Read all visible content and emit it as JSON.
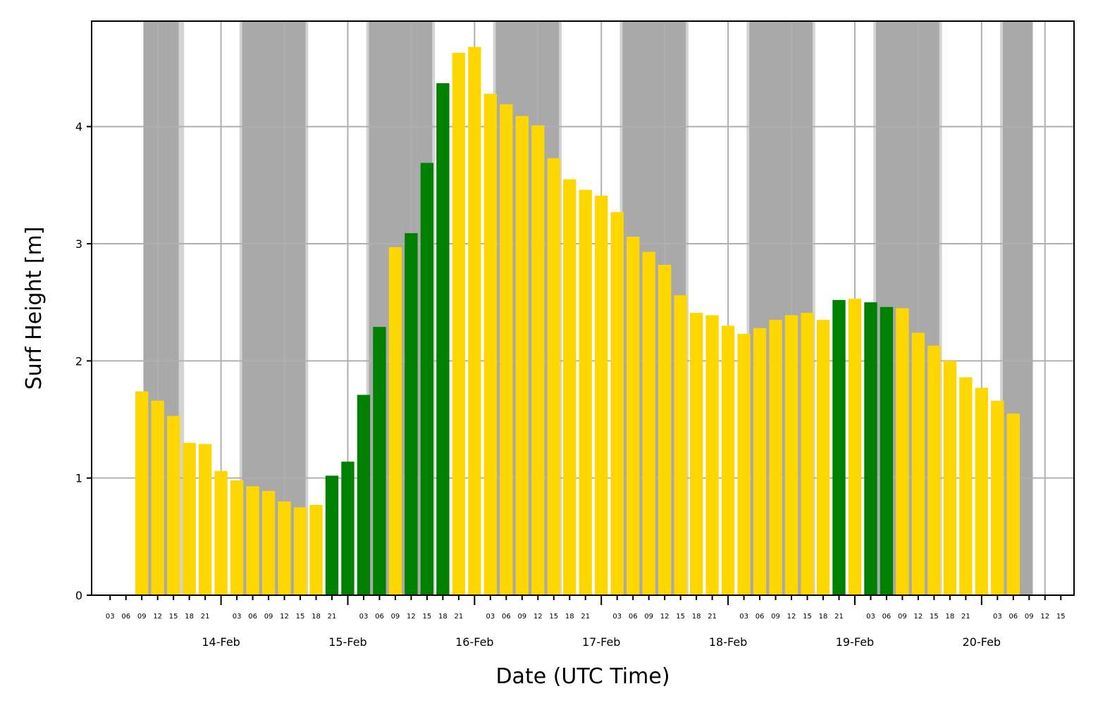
{
  "chart_data": {
    "type": "bar",
    "title": "",
    "xlabel": "Date (UTC Time)",
    "ylabel": "Surf Height [m]",
    "ylim": [
      0,
      4.9
    ],
    "yticks": [
      0,
      1,
      2,
      3,
      4
    ],
    "ytick_labels": [
      "0",
      "1",
      "2",
      "3",
      "4"
    ],
    "grid": true,
    "x_unit": "hours since 13-Feb 00:00 UTC",
    "xlim": [
      -0.5,
      185.5
    ],
    "hour_ticks": [
      "03",
      "06",
      "09",
      "12",
      "15",
      "18",
      "21"
    ],
    "days": [
      "14-Feb",
      "15-Feb",
      "16-Feb",
      "17-Feb",
      "18-Feb",
      "19-Feb",
      "20-Feb"
    ],
    "night_bands": [
      [
        9.3,
        16.0
      ],
      [
        28.0,
        40.0
      ],
      [
        52.0,
        64.0
      ],
      [
        76.0,
        88.0
      ],
      [
        100.0,
        112.0
      ],
      [
        124.0,
        136.0
      ],
      [
        148.0,
        160.0
      ],
      [
        172.0,
        177.7
      ]
    ],
    "twilight_bands": [
      [
        16.0,
        17.0
      ],
      [
        27.5,
        28.0
      ],
      [
        40.0,
        40.5
      ],
      [
        51.5,
        52.0
      ],
      [
        64.0,
        64.5
      ],
      [
        75.5,
        76.0
      ],
      [
        88.0,
        88.5
      ],
      [
        99.5,
        100.0
      ],
      [
        112.0,
        112.5
      ],
      [
        123.5,
        124.0
      ],
      [
        136.0,
        136.5
      ],
      [
        147.5,
        148.0
      ],
      [
        160.0,
        160.5
      ],
      [
        171.5,
        172.0
      ]
    ],
    "colors": {
      "yellow": "#FFD700",
      "green": "#008000",
      "night": "#A9A9A9",
      "twilight": "#D3D3D3",
      "grid": "#B0B0B0"
    },
    "series": [
      {
        "name": "Surf Height",
        "x": [
          9,
          12,
          15,
          18,
          21,
          24,
          27,
          30,
          33,
          36,
          39,
          42,
          45,
          48,
          51,
          54,
          57,
          60,
          63,
          66,
          69,
          72,
          75,
          78,
          81,
          84,
          87,
          90,
          93,
          96,
          99,
          102,
          105,
          108,
          111,
          114,
          117,
          120,
          123,
          126,
          129,
          132,
          135,
          138,
          141,
          144,
          147,
          150,
          153,
          156,
          159,
          162,
          165,
          168,
          171,
          174,
          177
        ],
        "values": [
          1.74,
          1.66,
          1.53,
          1.3,
          1.29,
          1.06,
          0.98,
          0.93,
          0.89,
          0.8,
          0.75,
          0.77,
          1.02,
          1.14,
          1.71,
          2.29,
          2.97,
          3.09,
          3.69,
          4.37,
          4.63,
          4.68,
          4.28,
          4.19,
          4.09,
          4.01,
          3.73,
          3.55,
          3.46,
          3.41,
          3.27,
          3.06,
          2.93,
          2.82,
          2.56,
          2.41,
          2.39,
          2.3,
          2.23,
          2.28,
          2.35,
          2.39,
          2.41,
          2.35,
          2.52,
          2.53,
          2.5,
          2.46,
          2.45,
          2.24,
          2.13,
          2.0,
          1.86,
          1.77,
          1.66,
          1.55,
          0
        ],
        "quality": [
          "y",
          "y",
          "y",
          "y",
          "y",
          "y",
          "y",
          "y",
          "y",
          "y",
          "y",
          "y",
          "g",
          "g",
          "g",
          "g",
          "y",
          "g",
          "g",
          "g",
          "y",
          "y",
          "y",
          "y",
          "y",
          "y",
          "y",
          "y",
          "y",
          "y",
          "y",
          "y",
          "y",
          "y",
          "y",
          "y",
          "y",
          "y",
          "y",
          "y",
          "y",
          "y",
          "y",
          "y",
          "g",
          "y",
          "g",
          "g",
          "y",
          "y",
          "y",
          "y",
          "y",
          "y",
          "y",
          "y",
          "y"
        ]
      }
    ]
  }
}
